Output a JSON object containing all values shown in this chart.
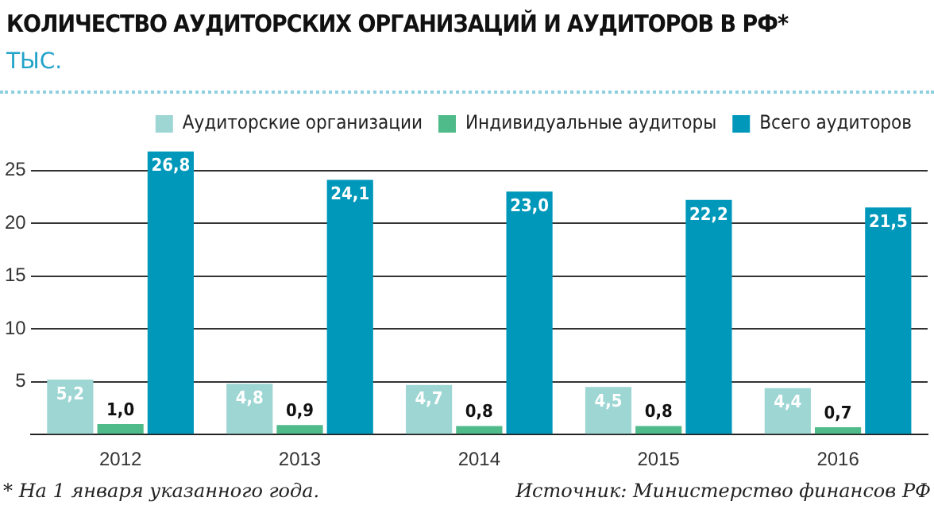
{
  "chart_data": {
    "type": "bar",
    "title": "КОЛИЧЕСТВО АУДИТОРСКИХ ОРГАНИЗАЦИЙ И АУДИТОРОВ В РФ*",
    "subtitle": "ТЫС.",
    "categories": [
      "2012",
      "2013",
      "2014",
      "2015",
      "2016"
    ],
    "series": [
      {
        "name": "Аудиторские организации",
        "color": "#9ed6d4",
        "values": [
          5.2,
          4.8,
          4.7,
          4.5,
          4.4
        ],
        "value_labels": [
          "5,2",
          "4,8",
          "4,7",
          "4,5",
          "4,4"
        ]
      },
      {
        "name": "Индивидуальные аудиторы",
        "color": "#4fba8a",
        "values": [
          1.0,
          0.9,
          0.8,
          0.8,
          0.7
        ],
        "value_labels": [
          "1,0",
          "0,9",
          "0,8",
          "0,8",
          "0,7"
        ]
      },
      {
        "name": "Всего аудиторов",
        "color": "#0098ba",
        "values": [
          26.8,
          24.1,
          23.0,
          22.2,
          21.5
        ],
        "value_labels": [
          "26,8",
          "24,1",
          "23,0",
          "22,2",
          "21,5"
        ]
      }
    ],
    "ylim": [
      0,
      27
    ],
    "yticks": [
      {
        "value": 0,
        "label": null
      },
      5,
      10,
      15,
      20,
      25
    ],
    "grid": "y",
    "legend": "top right",
    "annotations": [
      "* На 1 января указанного года.",
      "Источник: Министерство финансов РФ"
    ]
  }
}
